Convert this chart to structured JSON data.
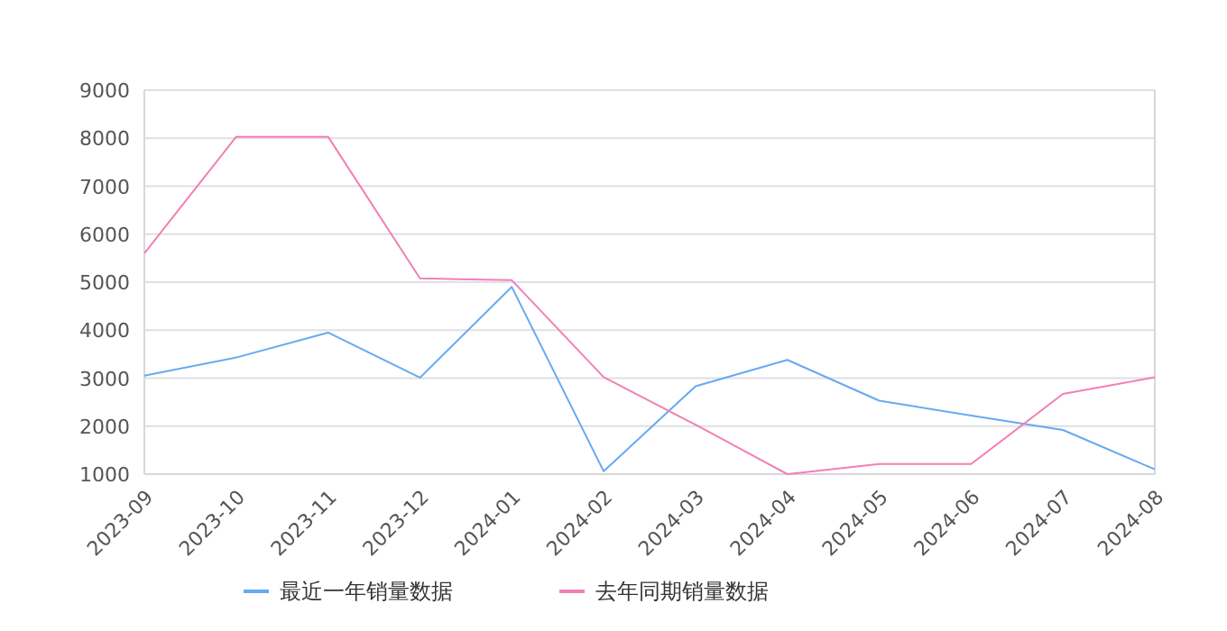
{
  "chart_data": {
    "type": "line",
    "categories": [
      "2023-09",
      "2023-10",
      "2023-11",
      "2023-12",
      "2024-01",
      "2024-02",
      "2024-03",
      "2024-04",
      "2024-05",
      "2024-06",
      "2024-07",
      "2024-08"
    ],
    "series": [
      {
        "name": "最近一年销量数据",
        "color": "#66aaf2",
        "values": [
          3050,
          3430,
          3950,
          3010,
          4900,
          1060,
          2830,
          3380,
          2530,
          2220,
          1920,
          1100
        ]
      },
      {
        "name": "去年同期销量数据",
        "color": "#f27fb5",
        "values": [
          5600,
          8030,
          8030,
          5080,
          5040,
          3020,
          2030,
          1000,
          1210,
          1210,
          2670,
          3020
        ]
      }
    ],
    "ylim": [
      1000,
      9000
    ],
    "yticks": [
      1000,
      2000,
      3000,
      4000,
      5000,
      6000,
      7000,
      8000,
      9000
    ],
    "grid": "y",
    "legend": "bottom",
    "marker": "none"
  }
}
